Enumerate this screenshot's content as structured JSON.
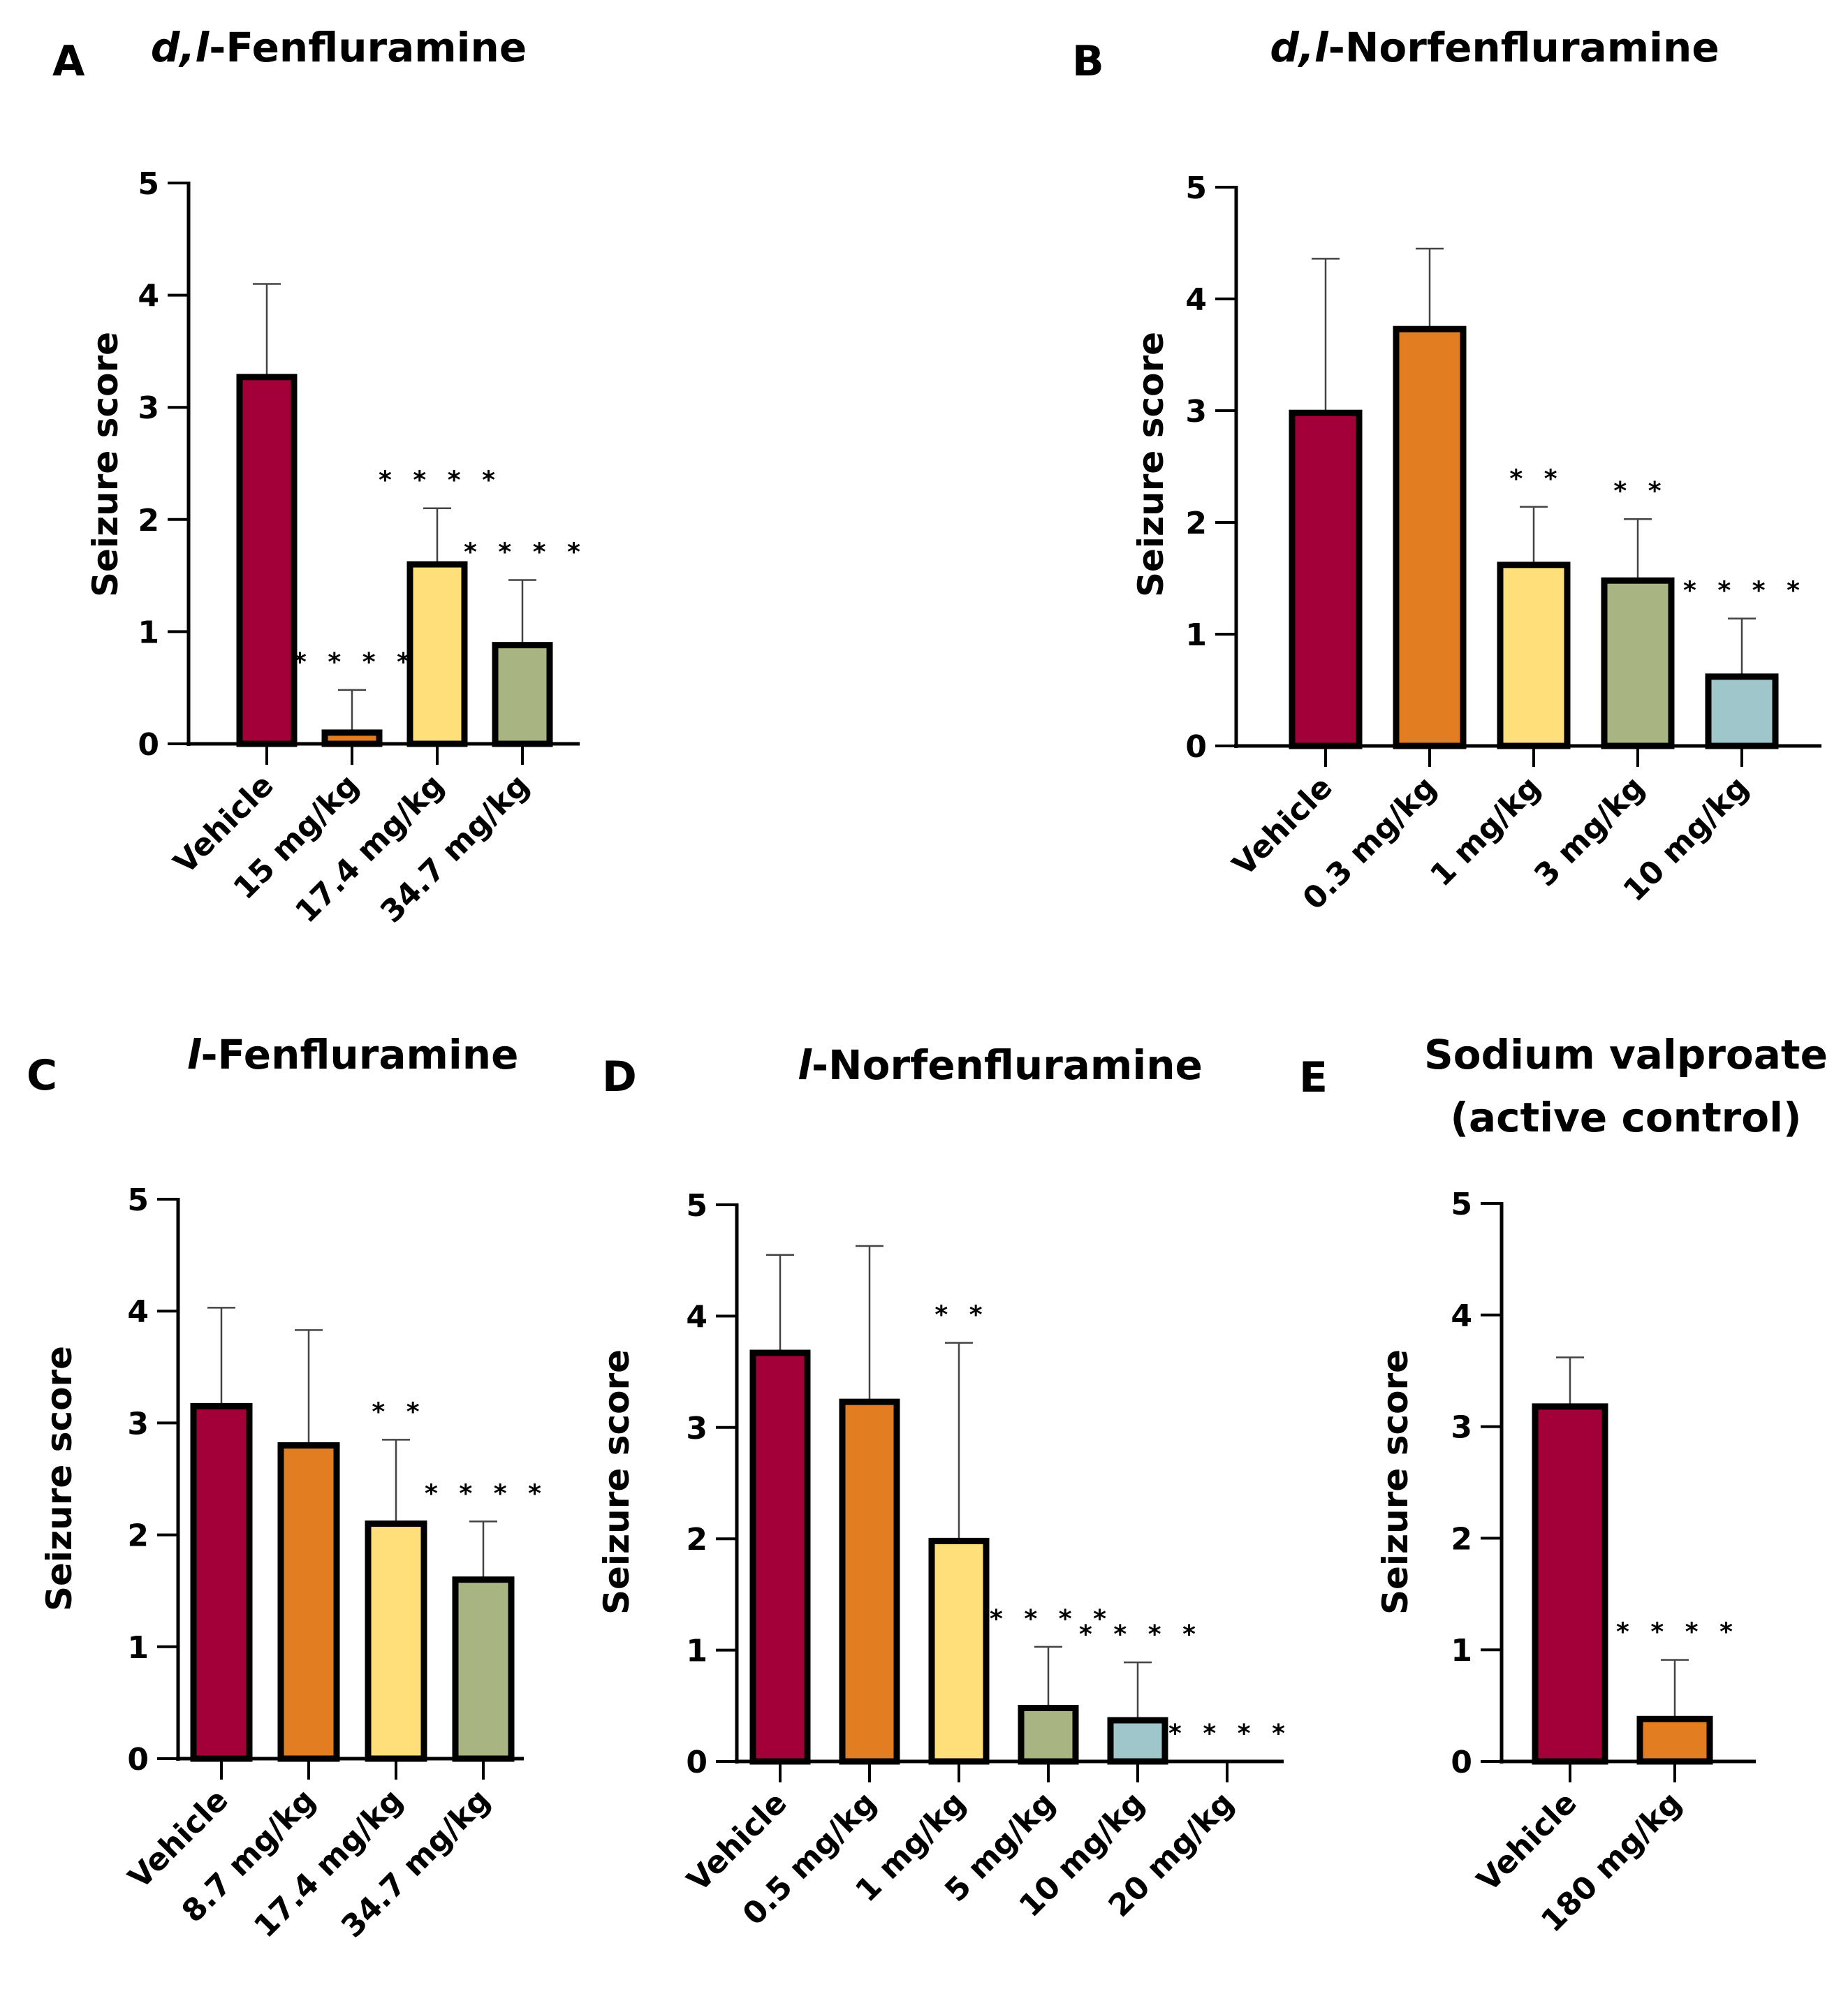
{
  "colors": {
    "red": "#A3003A",
    "orange": "#E27D22",
    "yellow": "#FFDF7A",
    "green": "#A8B582",
    "blue": "#9FC6CB"
  },
  "chart_data": [
    {
      "panel": "A",
      "type": "bar",
      "title_italic": "d,l",
      "title_rest": "-Fenfluramine",
      "title": "d,l-Fenfluramine",
      "ylabel": "Seizure score",
      "ylim": [
        0,
        5
      ],
      "yticks": [
        "0",
        "1",
        "2",
        "3",
        "4",
        "5"
      ],
      "categories": [
        "Vehicle",
        "15 mg/kg",
        "17.4 mg/kg",
        "34.7 mg/kg"
      ],
      "values": [
        3.27,
        0.1,
        1.6,
        0.88
      ],
      "errors": [
        0.83,
        0.38,
        0.5,
        0.58
      ],
      "significance": [
        "",
        "****",
        "****",
        "****"
      ],
      "colors": [
        "red",
        "orange",
        "yellow",
        "green"
      ]
    },
    {
      "panel": "B",
      "type": "bar",
      "title_italic": "d,l",
      "title_rest": "-Norfenfluramine",
      "title": "d,l-Norfenfluramine",
      "ylabel": "Seizure score",
      "ylim": [
        0,
        5
      ],
      "yticks": [
        "0",
        "1",
        "2",
        "3",
        "4",
        "5"
      ],
      "categories": [
        "Vehicle",
        "0.3 mg/kg",
        "1 mg/kg",
        "3 mg/kg",
        "10 mg/kg"
      ],
      "values": [
        2.98,
        3.73,
        1.62,
        1.48,
        0.62
      ],
      "errors": [
        1.38,
        0.72,
        0.52,
        0.55,
        0.52
      ],
      "significance": [
        "",
        "",
        "**",
        "**",
        "****"
      ],
      "colors": [
        "red",
        "orange",
        "yellow",
        "green",
        "blue"
      ]
    },
    {
      "panel": "C",
      "type": "bar",
      "title_italic": "l",
      "title_rest": "-Fenfluramine",
      "title": "l-Fenfluramine",
      "ylabel": "Seizure score",
      "ylim": [
        0,
        5
      ],
      "yticks": [
        "0",
        "1",
        "2",
        "3",
        "4",
        "5"
      ],
      "categories": [
        "Vehicle",
        "8.7 mg/kg",
        "17.4 mg/kg",
        "34.7 mg/kg"
      ],
      "values": [
        3.15,
        2.8,
        2.1,
        1.6
      ],
      "errors": [
        0.88,
        1.03,
        0.75,
        0.52
      ],
      "significance": [
        "",
        "",
        "**",
        "****"
      ],
      "colors": [
        "red",
        "orange",
        "yellow",
        "green"
      ]
    },
    {
      "panel": "D",
      "type": "bar",
      "title_italic": "l",
      "title_rest": "-Norfenfluramine",
      "title": "l-Norfenfluramine",
      "ylabel": "Seizure score",
      "ylim": [
        0,
        5
      ],
      "yticks": [
        "0",
        "1",
        "2",
        "3",
        "4",
        "5"
      ],
      "categories": [
        "Vehicle",
        "0.5 mg/kg",
        "1 mg/kg",
        "5 mg/kg",
        "10 mg/kg",
        "20 mg/kg"
      ],
      "values": [
        3.67,
        3.23,
        1.98,
        0.48,
        0.37,
        0
      ],
      "errors": [
        0.88,
        1.4,
        1.78,
        0.55,
        0.52,
        0
      ],
      "significance": [
        "",
        "",
        "**",
        "****",
        "****",
        "****"
      ],
      "colors": [
        "red",
        "orange",
        "yellow",
        "green",
        "blue",
        "none"
      ]
    },
    {
      "panel": "E",
      "type": "bar",
      "title_italic": "",
      "title_rest": "Sodium valproate",
      "title_line2": "(active control)",
      "title": "Sodium valproate (active control)",
      "ylabel": "Seizure score",
      "ylim": [
        0,
        5
      ],
      "yticks": [
        "0",
        "1",
        "2",
        "3",
        "4",
        "5"
      ],
      "categories": [
        "Vehicle",
        "180 mg/kg"
      ],
      "values": [
        3.18,
        0.38
      ],
      "errors": [
        0.44,
        0.53
      ],
      "significance": [
        "",
        "****"
      ],
      "colors": [
        "red",
        "orange"
      ]
    }
  ]
}
